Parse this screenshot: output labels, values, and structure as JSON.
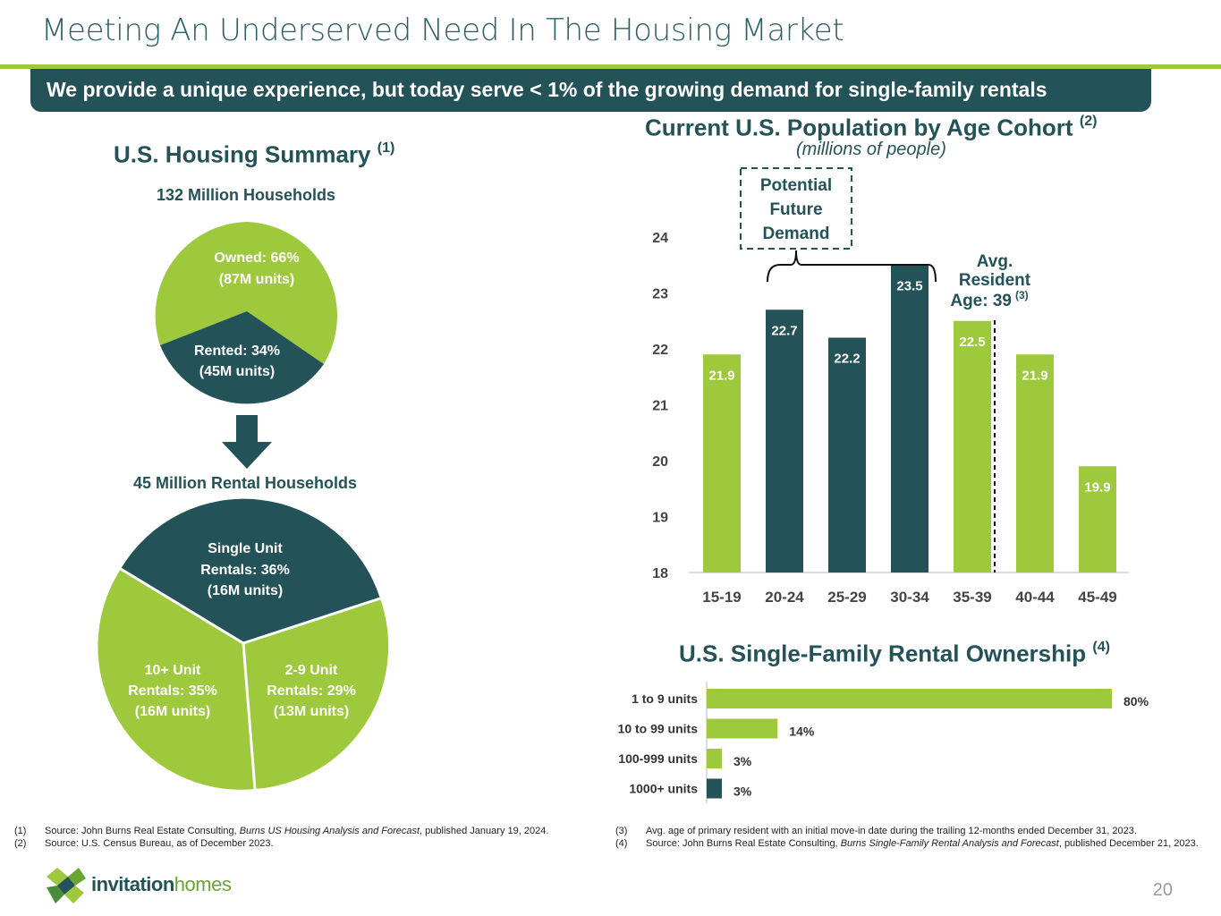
{
  "title": "Meeting An Underserved Need In The Housing Market",
  "banner": "We provide a unique experience, but today serve < 1% of the growing demand for single-family rentals",
  "housing": {
    "heading": "U.S. Housing Summary",
    "heading_note": "(1)",
    "households_label": "132 Million Households",
    "owned_line1": "Owned: 66%",
    "owned_line2": "(87M units)",
    "rented_line1": "Rented: 34%",
    "rented_line2": "(45M units)",
    "rental_label": "45 Million Rental Households",
    "single_line1": "Single Unit",
    "single_line2": "Rentals: 36%",
    "single_line3": "(16M units)",
    "ten_line1": "10+ Unit",
    "ten_line2": "Rentals: 35%",
    "ten_line3": "(16M units)",
    "two_line1": "2-9 Unit",
    "two_line2": "Rentals: 29%",
    "two_line3": "(13M units)"
  },
  "population": {
    "heading": "Current U.S. Population by Age Cohort",
    "heading_note": "(2)",
    "subheading": "(millions of people)",
    "demand_line1": "Potential",
    "demand_line2": "Future",
    "demand_line3": "Demand",
    "avg_line1": "Avg.",
    "avg_line2": "Resident",
    "avg_line3": "Age: 39",
    "avg_note": "(3)"
  },
  "ownership": {
    "heading": "U.S. Single-Family Rental Ownership",
    "heading_note": "(4)"
  },
  "colors": {
    "dark": "#235358",
    "green": "#9ec93d",
    "rule": "#9ec93d"
  },
  "chart_data": [
    {
      "type": "pie",
      "title": "132 Million Households",
      "slices": [
        {
          "label": "Owned",
          "percent": 66,
          "units": "87M units"
        },
        {
          "label": "Rented",
          "percent": 34,
          "units": "45M units"
        }
      ]
    },
    {
      "type": "pie",
      "title": "45 Million Rental Households",
      "slices": [
        {
          "label": "Single Unit Rentals",
          "percent": 36,
          "units": "16M units"
        },
        {
          "label": "2-9 Unit Rentals",
          "percent": 29,
          "units": "13M units"
        },
        {
          "label": "10+ Unit Rentals",
          "percent": 35,
          "units": "16M units"
        }
      ]
    },
    {
      "type": "bar",
      "title": "Current U.S. Population by Age Cohort",
      "ylabel": "millions of people",
      "categories": [
        "15-19",
        "20-24",
        "25-29",
        "30-34",
        "35-39",
        "40-44",
        "45-49"
      ],
      "values": [
        21.9,
        22.7,
        22.2,
        23.5,
        22.5,
        21.9,
        19.9
      ],
      "value_labels": [
        "21.9",
        "22.7",
        "22.2",
        "23.5",
        "22.5",
        "21.9",
        "19.9"
      ],
      "highlight": [
        false,
        true,
        true,
        true,
        false,
        false,
        false
      ],
      "ylim": [
        18,
        24
      ],
      "yticks": [
        "18",
        "19",
        "20",
        "21",
        "22",
        "23",
        "24"
      ],
      "avg_age_marker": 39
    },
    {
      "type": "bar",
      "orientation": "horizontal",
      "title": "U.S. Single-Family Rental Ownership",
      "categories": [
        "1 to 9 units",
        "10 to 99 units",
        "100-999 units",
        "1000+ units"
      ],
      "values": [
        80,
        14,
        3,
        3
      ],
      "value_labels": [
        "80%",
        "14%",
        "3%",
        "3%"
      ],
      "highlight": [
        false,
        false,
        false,
        true
      ]
    }
  ],
  "footnotes": {
    "left": [
      {
        "n": "(1)",
        "a": "Source: John Burns Real Estate Consulting, ",
        "i": "Burns US Housing Analysis and Forecast",
        "b": ", published January 19, 2024."
      },
      {
        "n": "(2)",
        "a": "Source: U.S. Census Bureau, as of December 2023.",
        "i": "",
        "b": ""
      }
    ],
    "right": [
      {
        "n": "(3)",
        "a": "Avg. age of primary resident with an initial move-in date during the trailing 12-months ended December 31, 2023.",
        "i": "",
        "b": ""
      },
      {
        "n": "(4)",
        "a": "Source: John Burns Real Estate Consulting, ",
        "i": "Burns Single-Family Rental Analysis and Forecast",
        "b": ", published December 21, 2023."
      }
    ]
  },
  "logo": {
    "word1": "invitation",
    "word2": "homes"
  },
  "page_number": "20"
}
